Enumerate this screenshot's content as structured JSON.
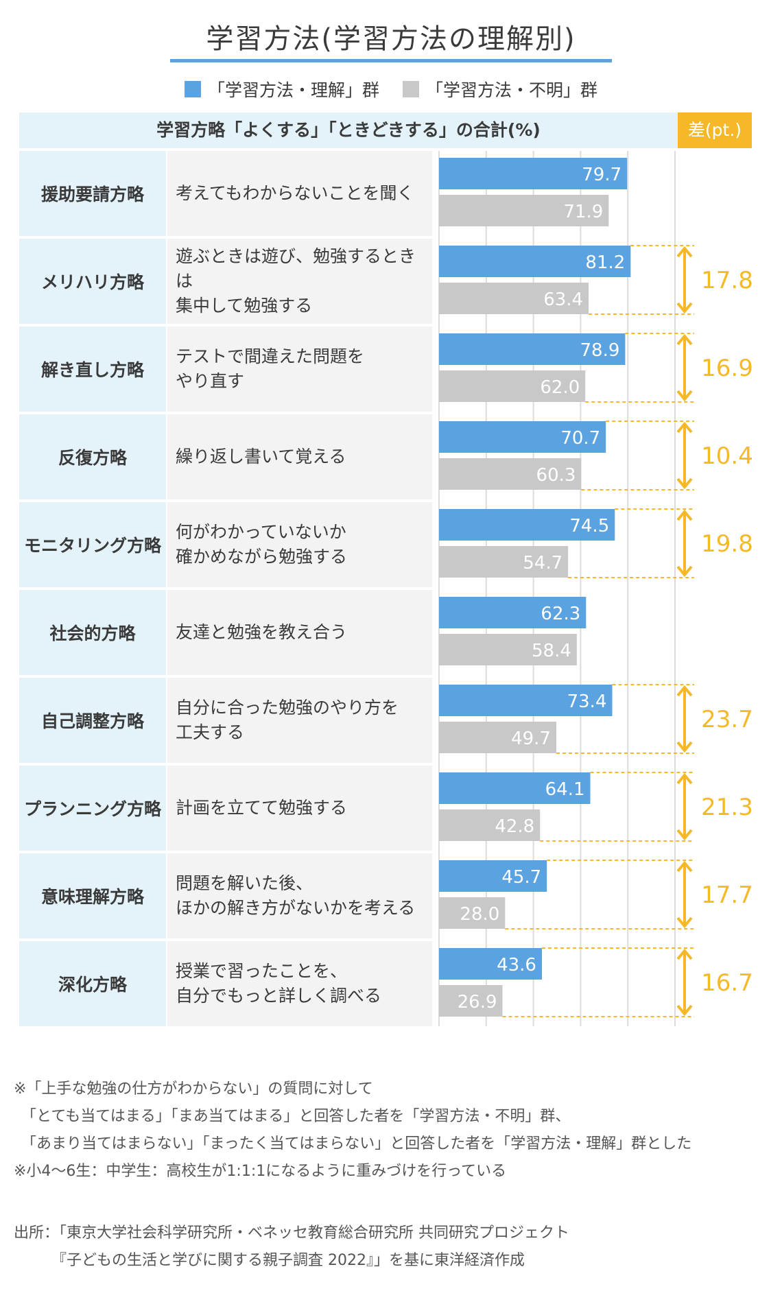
{
  "title": "学習方法(学習方法の理解別)",
  "legend": {
    "understand": "「学習方法・理解」群",
    "unknown": "「学習方法・不明」群"
  },
  "header": {
    "label": "学習方略「よくする」「ときどきする」の合計(%)",
    "diff_label": "差(pt.)"
  },
  "colors": {
    "understand": "#5aa2e0",
    "unknown": "#c8c8c8",
    "accent": "#f6b826",
    "band": "#e4f3fa"
  },
  "chart_data": {
    "type": "bar",
    "orientation": "horizontal",
    "categories": [
      "援助要請方略",
      "メリハリ方略",
      "解き直し方略",
      "反復方略",
      "モニタリング方略",
      "社会的方略",
      "自己調整方略",
      "プランニング方略",
      "意味理解方略",
      "深化方略"
    ],
    "descriptions": [
      "考えてもわからないことを聞く",
      "遊ぶときは遊び、勉強するときは\n集中して勉強する",
      "テストで間違えた問題を\nやり直す",
      "繰り返し書いて覚える",
      "何がわかっていないか\n確かめながら勉強する",
      "友達と勉強を教え合う",
      "自分に合った勉強のやり方を\n工夫する",
      "計画を立てて勉強する",
      "問題を解いた後、\nほかの解き方がないかを考える",
      "授業で習ったことを、\n自分でもっと詳しく調べる"
    ],
    "series": [
      {
        "name": "「学習方法・理解」群",
        "values": [
          79.7,
          81.2,
          78.9,
          70.7,
          74.5,
          62.3,
          73.4,
          64.1,
          45.7,
          43.6
        ]
      },
      {
        "name": "「学習方法・不明」群",
        "values": [
          71.9,
          63.4,
          62.0,
          60.3,
          54.7,
          58.4,
          49.7,
          42.8,
          28.0,
          26.9
        ]
      }
    ],
    "value_labels": {
      "understand": [
        "79.7",
        "81.2",
        "78.9",
        "70.7",
        "74.5",
        "62.3",
        "73.4",
        "64.1",
        "45.7",
        "43.6"
      ],
      "unknown": [
        "71.9",
        "63.4",
        "62.0",
        "60.3",
        "54.7",
        "58.4",
        "49.7",
        "42.8",
        "28.0",
        "26.9"
      ]
    },
    "differences": [
      "",
      "17.8",
      "16.9",
      "10.4",
      "19.8",
      "",
      "23.7",
      "21.3",
      "17.7",
      "16.7"
    ],
    "xlim": [
      0,
      100
    ],
    "grid": true
  },
  "notes": "※「上手な勉強の仕方がわからない」の質問に対して\n　「とても当てはまる」「まあ当てはまる」と回答した者を「学習方法・不明」群、\n　「あまり当てはまらない」「まったく当てはまらない」と回答した者を「学習方法・理解」群とした\n※小4〜6生：中学生：高校生が1:1:1になるように重みづけを行っている",
  "source": "出所：「東京大学社会科学研究所・ベネッセ教育総合研究所 共同研究プロジェクト\n　　　『子どもの生活と学びに関する親子調査 2022』」を基に東洋経済作成"
}
